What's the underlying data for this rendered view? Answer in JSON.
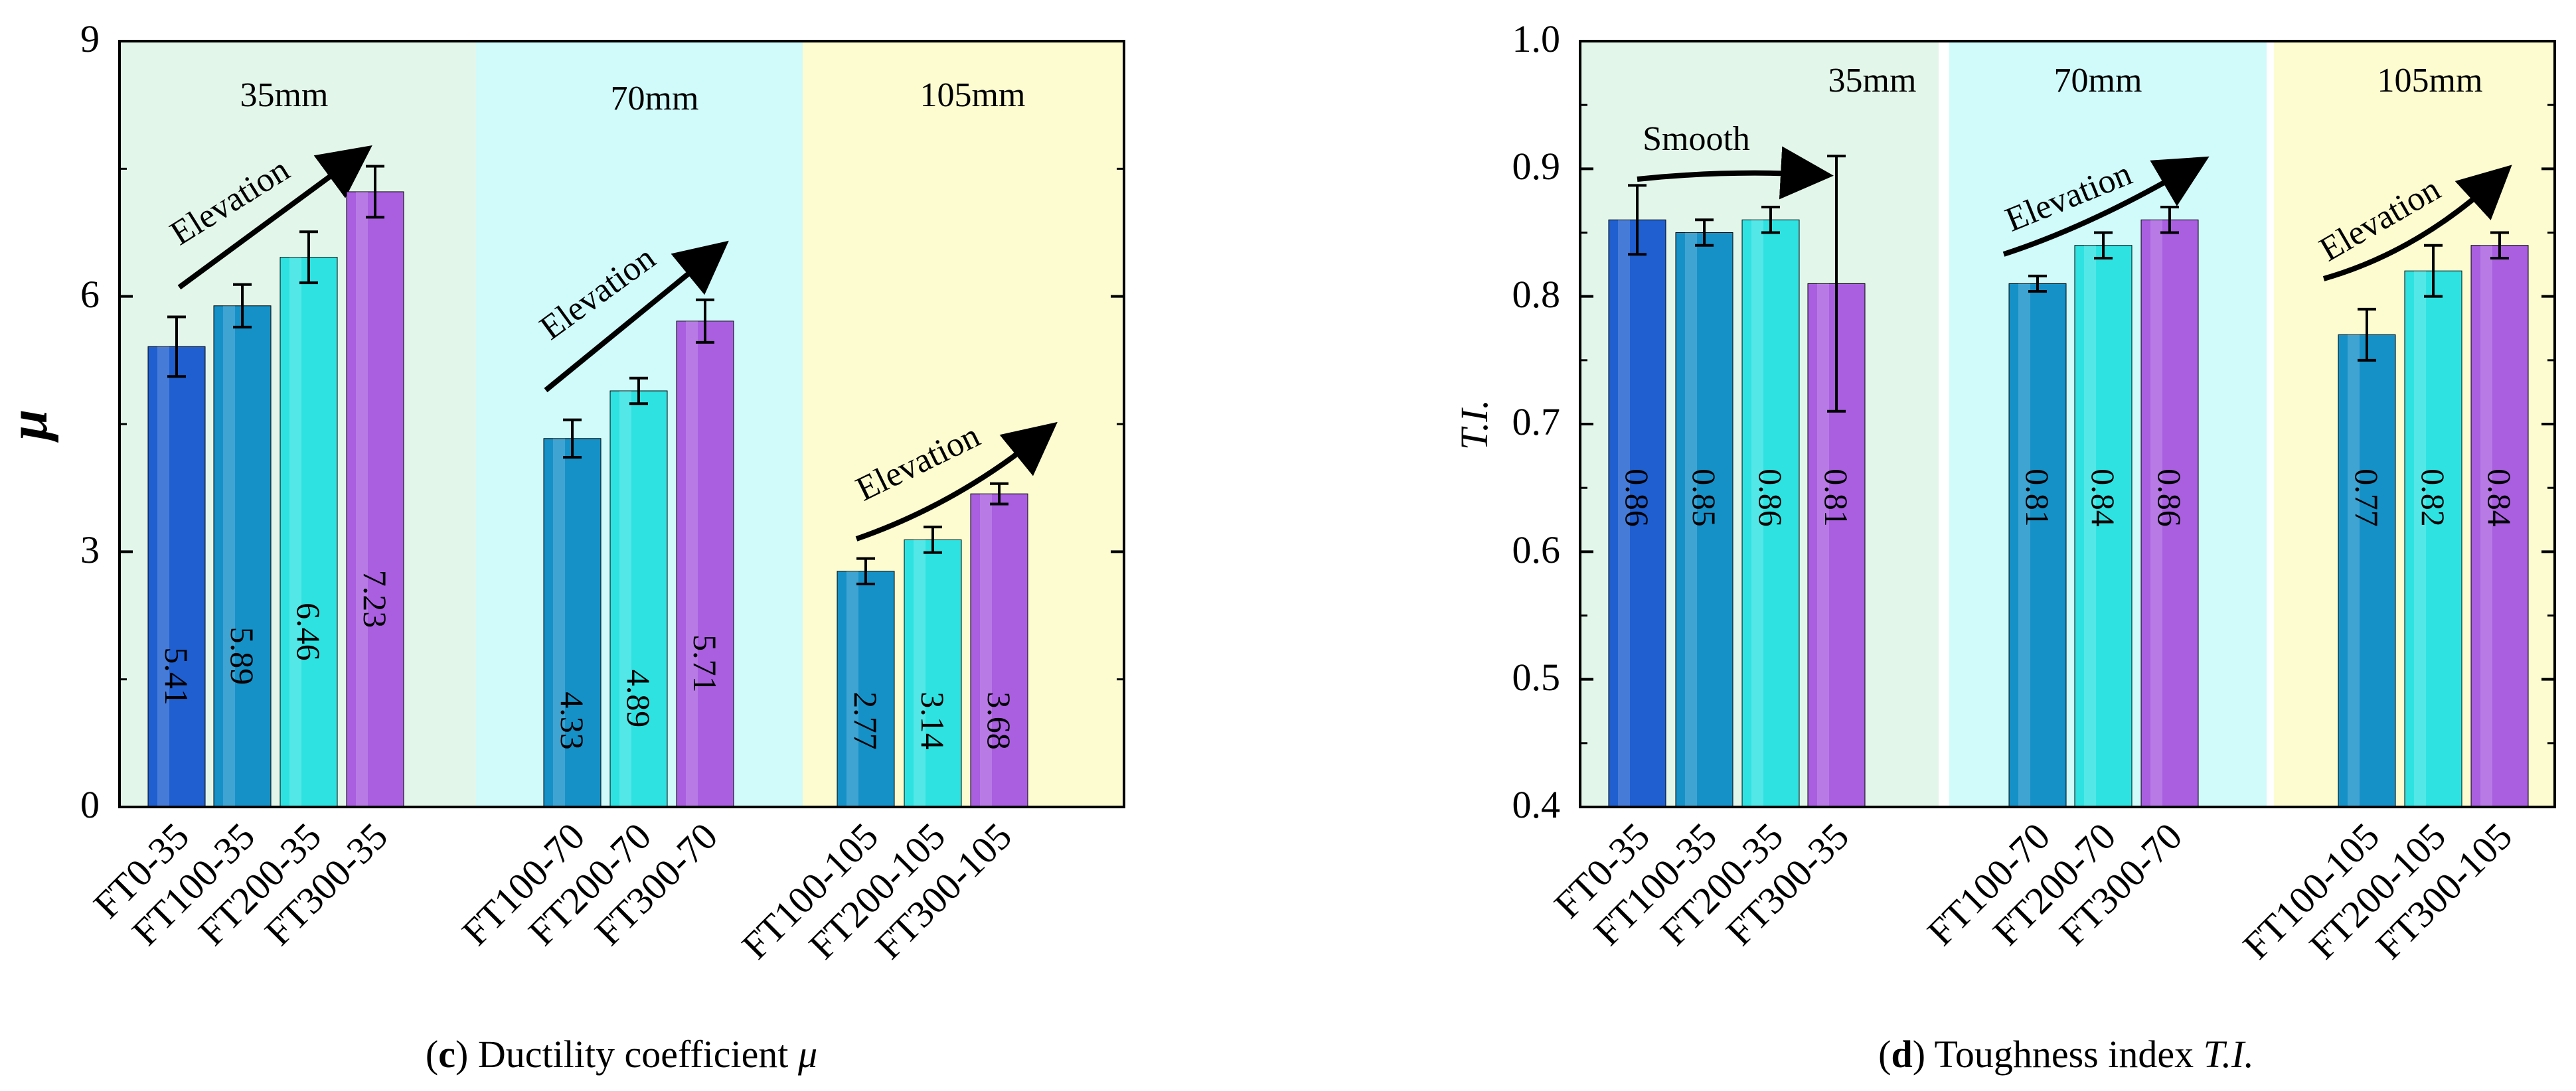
{
  "colors": {
    "group_35_bg": "#e3f6ea",
    "group_70_bg": "#d0fbfa",
    "group_105_bg": "#fcfcd0",
    "group_35_text": "#2e8b57",
    "group_70_text": "#137a7a",
    "group_105_text": "#7a5a14",
    "FT0": "#1f5fd0",
    "FT100": "#1591c8",
    "FT200": "#2fe2e2",
    "FT300": "#a95fe0"
  },
  "chart_data": [
    {
      "type": "bar",
      "id": "ductility",
      "title": "Ductility coefficient",
      "caption_letter": "c",
      "caption_symbol": "μ",
      "ylabel": "μ",
      "ylim": [
        0,
        9
      ],
      "yticks": [
        "0",
        "3",
        "6",
        "9"
      ],
      "groups": [
        {
          "label": "35mm",
          "color_key": "group_35",
          "bars": [
            {
              "category": "FT0-35",
              "value": 5.41,
              "label": "5.41",
              "err": 0.35,
              "color_key": "FT0"
            },
            {
              "category": "FT100-35",
              "value": 5.89,
              "label": "5.89",
              "err": 0.25,
              "color_key": "FT100"
            },
            {
              "category": "FT200-35",
              "value": 6.46,
              "label": "6.46",
              "err": 0.3,
              "color_key": "FT200"
            },
            {
              "category": "FT300-35",
              "value": 7.23,
              "label": "7.23",
              "err": 0.3,
              "color_key": "FT300"
            }
          ]
        },
        {
          "label": "70mm",
          "color_key": "group_70",
          "bars": [
            {
              "category": "FT100-70",
              "value": 4.33,
              "label": "4.33",
              "err": 0.22,
              "color_key": "FT100"
            },
            {
              "category": "FT200-70",
              "value": 4.89,
              "label": "4.89",
              "err": 0.15,
              "color_key": "FT200"
            },
            {
              "category": "FT300-70",
              "value": 5.71,
              "label": "5.71",
              "err": 0.25,
              "color_key": "FT300"
            }
          ]
        },
        {
          "label": "105mm",
          "color_key": "group_105",
          "bars": [
            {
              "category": "FT100-105",
              "value": 2.77,
              "label": "2.77",
              "err": 0.15,
              "color_key": "FT100"
            },
            {
              "category": "FT200-105",
              "value": 3.14,
              "label": "3.14",
              "err": 0.15,
              "color_key": "FT200"
            },
            {
              "category": "FT300-105",
              "value": 3.68,
              "label": "3.68",
              "err": 0.12,
              "color_key": "FT300"
            }
          ]
        }
      ],
      "annotations": [
        {
          "text": "Elevation",
          "group": 0
        },
        {
          "text": "Elevation",
          "group": 1
        },
        {
          "text": "Elevation",
          "group": 2
        }
      ]
    },
    {
      "type": "bar",
      "id": "toughness",
      "title": "Toughness index",
      "caption_letter": "d",
      "caption_symbol": "T.I.",
      "ylabel": "T.I.",
      "ylim": [
        0.4,
        1.0
      ],
      "yticks": [
        "0.4",
        "0.5",
        "0.6",
        "0.7",
        "0.8",
        "0.9",
        "1.0"
      ],
      "groups": [
        {
          "label": "35mm",
          "color_key": "group_35",
          "bars": [
            {
              "category": "FT0-35",
              "value": 0.86,
              "label": "0.86",
              "err": 0.027,
              "color_key": "FT0"
            },
            {
              "category": "FT100-35",
              "value": 0.85,
              "label": "0.85",
              "err": 0.01,
              "color_key": "FT100"
            },
            {
              "category": "FT200-35",
              "value": 0.86,
              "label": "0.86",
              "err": 0.01,
              "color_key": "FT200"
            },
            {
              "category": "FT300-35",
              "value": 0.81,
              "label": "0.81",
              "err": 0.1,
              "color_key": "FT300"
            }
          ]
        },
        {
          "label": "70mm",
          "color_key": "group_70",
          "bars": [
            {
              "category": "FT100-70",
              "value": 0.81,
              "label": "0.81",
              "err": 0.006,
              "color_key": "FT100"
            },
            {
              "category": "FT200-70",
              "value": 0.84,
              "label": "0.84",
              "err": 0.01,
              "color_key": "FT200"
            },
            {
              "category": "FT300-70",
              "value": 0.86,
              "label": "0.86",
              "err": 0.01,
              "color_key": "FT300"
            }
          ]
        },
        {
          "label": "105mm",
          "color_key": "group_105",
          "bars": [
            {
              "category": "FT100-105",
              "value": 0.77,
              "label": "0.77",
              "err": 0.02,
              "color_key": "FT100"
            },
            {
              "category": "FT200-105",
              "value": 0.82,
              "label": "0.82",
              "err": 0.02,
              "color_key": "FT200"
            },
            {
              "category": "FT300-105",
              "value": 0.84,
              "label": "0.84",
              "err": 0.01,
              "color_key": "FT300"
            }
          ]
        }
      ],
      "annotations": [
        {
          "text": "Smooth",
          "group": 0
        },
        {
          "text": "Elevation",
          "group": 1
        },
        {
          "text": "Elevation",
          "group": 2
        }
      ]
    }
  ]
}
